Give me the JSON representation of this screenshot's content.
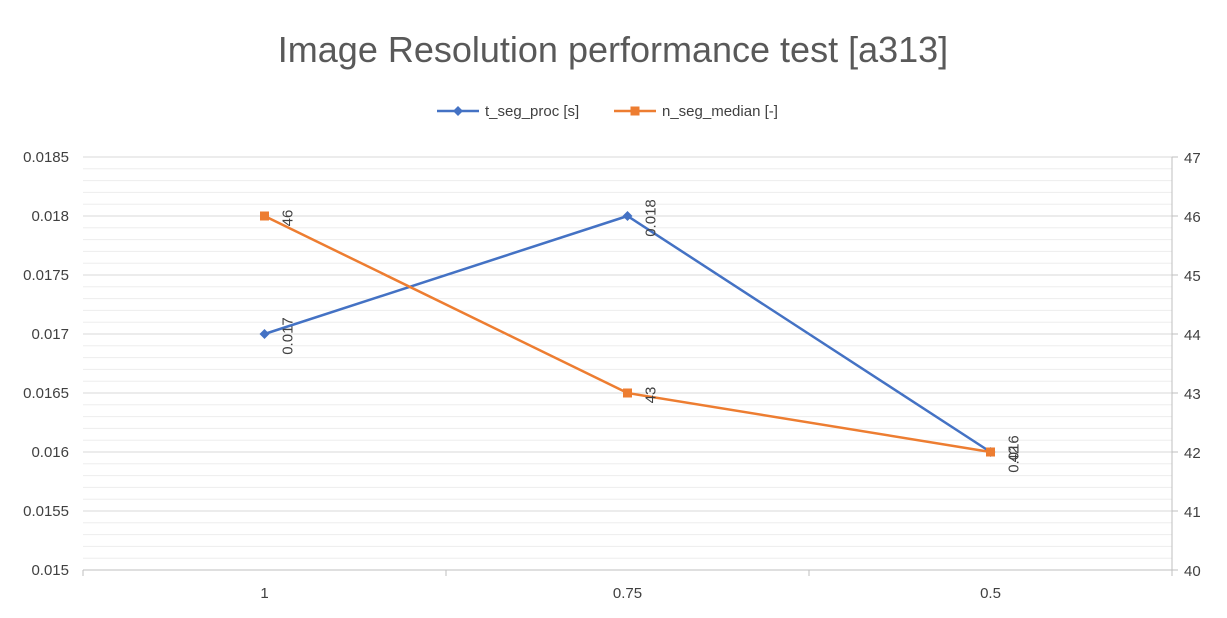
{
  "chart_data": {
    "type": "line",
    "title": "Image Resolution performance test [a313]",
    "categories": [
      "1",
      "0.75",
      "0.5"
    ],
    "series": [
      {
        "name": "t_seg_proc [s]",
        "axis": "left",
        "color": "#4472C4",
        "marker": "diamond",
        "values": [
          0.017,
          0.018,
          0.016
        ],
        "labels": [
          "0.017",
          "0.018",
          "0.016"
        ]
      },
      {
        "name": "n_seg_median [-]",
        "axis": "right",
        "color": "#ED7D31",
        "marker": "square",
        "values": [
          46,
          43,
          42
        ],
        "labels": [
          "46",
          "43",
          "42"
        ]
      }
    ],
    "y_left": {
      "range": [
        0.015,
        0.0185
      ],
      "ticks": [
        "0.015",
        "0.0155",
        "0.016",
        "0.0165",
        "0.017",
        "0.0175",
        "0.018",
        "0.0185"
      ]
    },
    "y_right": {
      "range": [
        40,
        47
      ],
      "ticks": [
        "40",
        "41",
        "42",
        "43",
        "44",
        "45",
        "46",
        "47"
      ]
    },
    "grid": true,
    "legend": "top"
  }
}
